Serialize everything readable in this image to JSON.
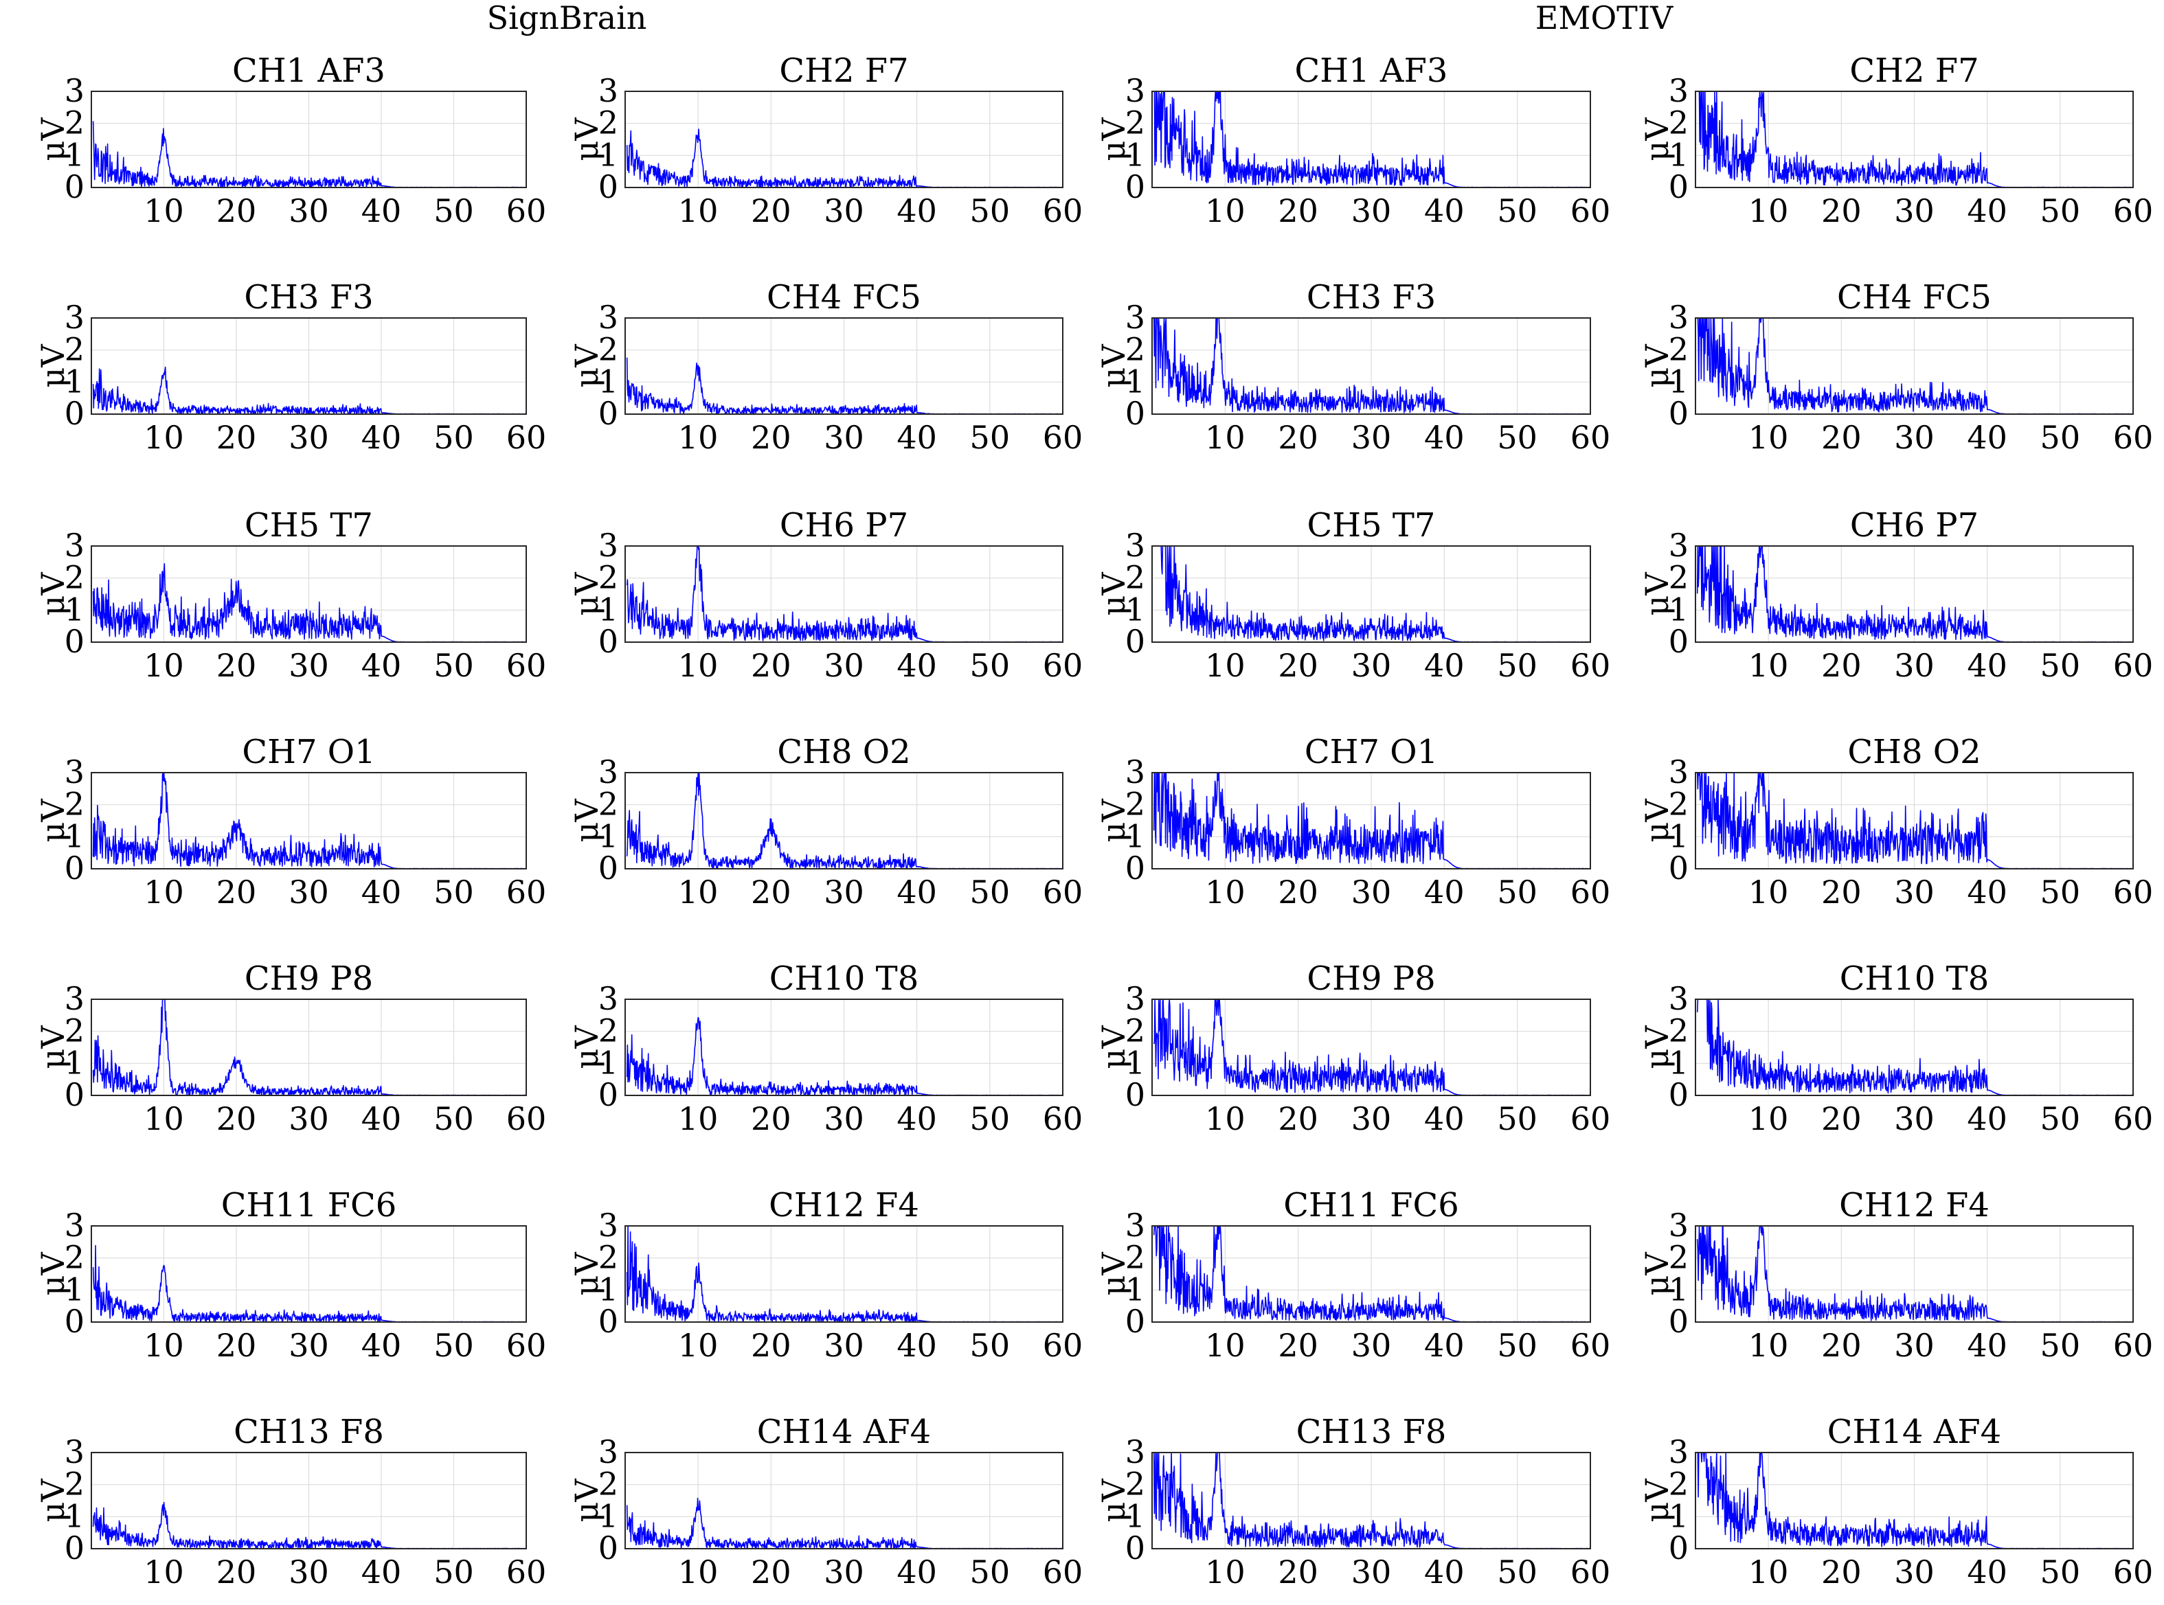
{
  "colors": {
    "trace": "#0000ff",
    "axis": "#262626",
    "grid": "#dcdcdc"
  },
  "groups": [
    {
      "title": "SignBrain"
    },
    {
      "title": "EMOTIV"
    }
  ],
  "chart_data": [
    {
      "group": "SignBrain",
      "title": "CH1 AF3",
      "type": "line",
      "xlim": [
        0,
        60
      ],
      "ylim": [
        0,
        3
      ],
      "xticks": [
        10,
        20,
        30,
        40,
        50,
        60
      ],
      "yticks": [
        0,
        1,
        2,
        3
      ],
      "ylabel": "μV",
      "grid": true,
      "cutoff": 40,
      "series": [
        {
          "peak_hz": 10,
          "peak_uv": 1.6,
          "floor_uv": 0.12,
          "start_uv": 0.9
        }
      ]
    },
    {
      "group": "SignBrain",
      "title": "CH2 F7",
      "type": "line",
      "xlim": [
        0,
        60
      ],
      "ylim": [
        0,
        3
      ],
      "xticks": [
        10,
        20,
        30,
        40,
        50,
        60
      ],
      "yticks": [
        0,
        1,
        2,
        3
      ],
      "ylabel": "μV",
      "grid": true,
      "cutoff": 40,
      "series": [
        {
          "peak_hz": 10,
          "peak_uv": 1.7,
          "floor_uv": 0.12,
          "start_uv": 0.9
        }
      ]
    },
    {
      "group": "EMOTIV",
      "title": "CH1 AF3",
      "type": "line",
      "xlim": [
        0,
        60
      ],
      "ylim": [
        0,
        3
      ],
      "xticks": [
        10,
        20,
        30,
        40,
        50,
        60
      ],
      "yticks": [
        0,
        1,
        2,
        3
      ],
      "ylabel": "μV",
      "grid": true,
      "cutoff": 40,
      "series": [
        {
          "peak_hz": 9,
          "peak_uv": 3.0,
          "floor_uv": 0.35,
          "start_uv": 2.6
        }
      ]
    },
    {
      "group": "EMOTIV",
      "title": "CH2 F7",
      "type": "line",
      "xlim": [
        0,
        60
      ],
      "ylim": [
        0,
        3
      ],
      "xticks": [
        10,
        20,
        30,
        40,
        50,
        60
      ],
      "yticks": [
        0,
        1,
        2,
        3
      ],
      "ylabel": "μV",
      "grid": true,
      "cutoff": 40,
      "series": [
        {
          "peak_hz": 9,
          "peak_uv": 3.0,
          "floor_uv": 0.35,
          "start_uv": 2.6
        }
      ]
    },
    {
      "group": "SignBrain",
      "title": "CH3 F3",
      "type": "line",
      "xlim": [
        0,
        60
      ],
      "ylim": [
        0,
        3
      ],
      "xticks": [
        10,
        20,
        30,
        40,
        50,
        60
      ],
      "yticks": [
        0,
        1,
        2,
        3
      ],
      "ylabel": "μV",
      "grid": true,
      "cutoff": 40,
      "series": [
        {
          "peak_hz": 10,
          "peak_uv": 1.3,
          "floor_uv": 0.1,
          "start_uv": 0.7
        }
      ]
    },
    {
      "group": "SignBrain",
      "title": "CH4 FC5",
      "type": "line",
      "xlim": [
        0,
        60
      ],
      "ylim": [
        0,
        3
      ],
      "xticks": [
        10,
        20,
        30,
        40,
        50,
        60
      ],
      "yticks": [
        0,
        1,
        2,
        3
      ],
      "ylabel": "μV",
      "grid": true,
      "cutoff": 40,
      "series": [
        {
          "peak_hz": 10,
          "peak_uv": 1.5,
          "floor_uv": 0.1,
          "start_uv": 0.7
        }
      ]
    },
    {
      "group": "EMOTIV",
      "title": "CH3 F3",
      "type": "line",
      "xlim": [
        0,
        60
      ],
      "ylim": [
        0,
        3
      ],
      "xticks": [
        10,
        20,
        30,
        40,
        50,
        60
      ],
      "yticks": [
        0,
        1,
        2,
        3
      ],
      "ylabel": "μV",
      "grid": true,
      "cutoff": 40,
      "series": [
        {
          "peak_hz": 9,
          "peak_uv": 3.0,
          "floor_uv": 0.3,
          "start_uv": 2.4
        }
      ]
    },
    {
      "group": "EMOTIV",
      "title": "CH4 FC5",
      "type": "line",
      "xlim": [
        0,
        60
      ],
      "ylim": [
        0,
        3
      ],
      "xticks": [
        10,
        20,
        30,
        40,
        50,
        60
      ],
      "yticks": [
        0,
        1,
        2,
        3
      ],
      "ylabel": "μV",
      "grid": true,
      "cutoff": 40,
      "series": [
        {
          "peak_hz": 9,
          "peak_uv": 3.0,
          "floor_uv": 0.35,
          "start_uv": 3.0
        }
      ]
    },
    {
      "group": "SignBrain",
      "title": "CH5 T7",
      "type": "line",
      "xlim": [
        0,
        60
      ],
      "ylim": [
        0,
        3
      ],
      "xticks": [
        10,
        20,
        30,
        40,
        50,
        60
      ],
      "yticks": [
        0,
        1,
        2,
        3
      ],
      "ylabel": "μV",
      "grid": true,
      "cutoff": 40,
      "series": [
        {
          "peak_hz": 10,
          "peak_uv": 2.1,
          "floor_uv": 0.45,
          "start_uv": 1.0,
          "beta_hz": 20,
          "beta_uv": 1.5
        }
      ]
    },
    {
      "group": "SignBrain",
      "title": "CH6 P7",
      "type": "line",
      "xlim": [
        0,
        60
      ],
      "ylim": [
        0,
        3
      ],
      "xticks": [
        10,
        20,
        30,
        40,
        50,
        60
      ],
      "yticks": [
        0,
        1,
        2,
        3
      ],
      "ylabel": "μV",
      "grid": true,
      "cutoff": 40,
      "series": [
        {
          "peak_hz": 10,
          "peak_uv": 3.0,
          "floor_uv": 0.3,
          "start_uv": 1.1
        }
      ]
    },
    {
      "group": "EMOTIV",
      "title": "CH5 T7",
      "type": "line",
      "xlim": [
        0,
        60
      ],
      "ylim": [
        0,
        3
      ],
      "xticks": [
        10,
        20,
        30,
        40,
        50,
        60
      ],
      "yticks": [
        0,
        1,
        2,
        3
      ],
      "ylabel": "μV",
      "grid": true,
      "cutoff": 40,
      "series": [
        {
          "peak_hz": 1,
          "peak_uv": 3.0,
          "floor_uv": 0.3,
          "start_uv": 2.6
        }
      ]
    },
    {
      "group": "EMOTIV",
      "title": "CH6 P7",
      "type": "line",
      "xlim": [
        0,
        60
      ],
      "ylim": [
        0,
        3
      ],
      "xticks": [
        10,
        20,
        30,
        40,
        50,
        60
      ],
      "yticks": [
        0,
        1,
        2,
        3
      ],
      "ylabel": "μV",
      "grid": true,
      "cutoff": 40,
      "series": [
        {
          "peak_hz": 9,
          "peak_uv": 3.0,
          "floor_uv": 0.4,
          "start_uv": 2.7
        }
      ]
    },
    {
      "group": "SignBrain",
      "title": "CH7 O1",
      "type": "line",
      "xlim": [
        0,
        60
      ],
      "ylim": [
        0,
        3
      ],
      "xticks": [
        10,
        20,
        30,
        40,
        50,
        60
      ],
      "yticks": [
        0,
        1,
        2,
        3
      ],
      "ylabel": "μV",
      "grid": true,
      "cutoff": 40,
      "series": [
        {
          "peak_hz": 10,
          "peak_uv": 3.0,
          "floor_uv": 0.35,
          "start_uv": 1.0,
          "beta_hz": 20,
          "beta_uv": 1.3
        }
      ]
    },
    {
      "group": "SignBrain",
      "title": "CH8 O2",
      "type": "line",
      "xlim": [
        0,
        60
      ],
      "ylim": [
        0,
        3
      ],
      "xticks": [
        10,
        20,
        30,
        40,
        50,
        60
      ],
      "yticks": [
        0,
        1,
        2,
        3
      ],
      "ylabel": "μV",
      "grid": true,
      "cutoff": 40,
      "series": [
        {
          "peak_hz": 10,
          "peak_uv": 3.0,
          "floor_uv": 0.15,
          "start_uv": 1.0,
          "beta_hz": 20,
          "beta_uv": 1.3
        }
      ]
    },
    {
      "group": "EMOTIV",
      "title": "CH7 O1",
      "type": "line",
      "xlim": [
        0,
        60
      ],
      "ylim": [
        0,
        3
      ],
      "xticks": [
        10,
        20,
        30,
        40,
        50,
        60
      ],
      "yticks": [
        0,
        1,
        2,
        3
      ],
      "ylabel": "μV",
      "grid": true,
      "cutoff": 40,
      "series": [
        {
          "peak_hz": 9,
          "peak_uv": 3.0,
          "floor_uv": 0.7,
          "start_uv": 2.6
        }
      ]
    },
    {
      "group": "EMOTIV",
      "title": "CH8 O2",
      "type": "line",
      "xlim": [
        0,
        60
      ],
      "ylim": [
        0,
        3
      ],
      "xticks": [
        10,
        20,
        30,
        40,
        50,
        60
      ],
      "yticks": [
        0,
        1,
        2,
        3
      ],
      "ylabel": "μV",
      "grid": true,
      "cutoff": 40,
      "series": [
        {
          "peak_hz": 9,
          "peak_uv": 3.0,
          "floor_uv": 0.7,
          "start_uv": 2.4
        }
      ]
    },
    {
      "group": "SignBrain",
      "title": "CH9 P8",
      "type": "line",
      "xlim": [
        0,
        60
      ],
      "ylim": [
        0,
        3
      ],
      "xticks": [
        10,
        20,
        30,
        40,
        50,
        60
      ],
      "yticks": [
        0,
        1,
        2,
        3
      ],
      "ylabel": "μV",
      "grid": true,
      "cutoff": 40,
      "series": [
        {
          "peak_hz": 10,
          "peak_uv": 3.0,
          "floor_uv": 0.1,
          "start_uv": 1.0,
          "beta_hz": 20,
          "beta_uv": 1.1
        }
      ]
    },
    {
      "group": "SignBrain",
      "title": "CH10 T8",
      "type": "line",
      "xlim": [
        0,
        60
      ],
      "ylim": [
        0,
        3
      ],
      "xticks": [
        10,
        20,
        30,
        40,
        50,
        60
      ],
      "yticks": [
        0,
        1,
        2,
        3
      ],
      "ylabel": "μV",
      "grid": true,
      "cutoff": 40,
      "series": [
        {
          "peak_hz": 10,
          "peak_uv": 2.3,
          "floor_uv": 0.15,
          "start_uv": 0.9
        }
      ]
    },
    {
      "group": "EMOTIV",
      "title": "CH9 P8",
      "type": "line",
      "xlim": [
        0,
        60
      ],
      "ylim": [
        0,
        3
      ],
      "xticks": [
        10,
        20,
        30,
        40,
        50,
        60
      ],
      "yticks": [
        0,
        1,
        2,
        3
      ],
      "ylabel": "μV",
      "grid": true,
      "cutoff": 40,
      "series": [
        {
          "peak_hz": 9,
          "peak_uv": 3.0,
          "floor_uv": 0.45,
          "start_uv": 2.4
        }
      ]
    },
    {
      "group": "EMOTIV",
      "title": "CH10 T8",
      "type": "line",
      "xlim": [
        0,
        60
      ],
      "ylim": [
        0,
        3
      ],
      "xticks": [
        10,
        20,
        30,
        40,
        50,
        60
      ],
      "yticks": [
        0,
        1,
        2,
        3
      ],
      "ylabel": "μV",
      "grid": true,
      "cutoff": 40,
      "series": [
        {
          "peak_hz": 1,
          "peak_uv": 3.0,
          "floor_uv": 0.4,
          "start_uv": 2.8
        }
      ]
    },
    {
      "group": "SignBrain",
      "title": "CH11 FC6",
      "type": "line",
      "xlim": [
        0,
        60
      ],
      "ylim": [
        0,
        3
      ],
      "xticks": [
        10,
        20,
        30,
        40,
        50,
        60
      ],
      "yticks": [
        0,
        1,
        2,
        3
      ],
      "ylabel": "μV",
      "grid": true,
      "cutoff": 40,
      "series": [
        {
          "peak_hz": 10,
          "peak_uv": 1.7,
          "floor_uv": 0.12,
          "start_uv": 1.0
        }
      ]
    },
    {
      "group": "SignBrain",
      "title": "CH12 F4",
      "type": "line",
      "xlim": [
        0,
        60
      ],
      "ylim": [
        0,
        3
      ],
      "xticks": [
        10,
        20,
        30,
        40,
        50,
        60
      ],
      "yticks": [
        0,
        1,
        2,
        3
      ],
      "ylabel": "μV",
      "grid": true,
      "cutoff": 40,
      "series": [
        {
          "peak_hz": 10,
          "peak_uv": 1.6,
          "floor_uv": 0.12,
          "start_uv": 1.5
        }
      ]
    },
    {
      "group": "EMOTIV",
      "title": "CH11 FC6",
      "type": "line",
      "xlim": [
        0,
        60
      ],
      "ylim": [
        0,
        3
      ],
      "xticks": [
        10,
        20,
        30,
        40,
        50,
        60
      ],
      "yticks": [
        0,
        1,
        2,
        3
      ],
      "ylabel": "μV",
      "grid": true,
      "cutoff": 40,
      "series": [
        {
          "peak_hz": 9,
          "peak_uv": 3.0,
          "floor_uv": 0.3,
          "start_uv": 3.0
        }
      ]
    },
    {
      "group": "EMOTIV",
      "title": "CH12 F4",
      "type": "line",
      "xlim": [
        0,
        60
      ],
      "ylim": [
        0,
        3
      ],
      "xticks": [
        10,
        20,
        30,
        40,
        50,
        60
      ],
      "yticks": [
        0,
        1,
        2,
        3
      ],
      "ylabel": "μV",
      "grid": true,
      "cutoff": 40,
      "series": [
        {
          "peak_hz": 9,
          "peak_uv": 3.0,
          "floor_uv": 0.3,
          "start_uv": 2.8
        }
      ]
    },
    {
      "group": "SignBrain",
      "title": "CH13 F8",
      "type": "line",
      "xlim": [
        0,
        60
      ],
      "ylim": [
        0,
        3
      ],
      "xticks": [
        10,
        20,
        30,
        40,
        50,
        60
      ],
      "yticks": [
        0,
        1,
        2,
        3
      ],
      "ylabel": "μV",
      "grid": true,
      "cutoff": 40,
      "series": [
        {
          "peak_hz": 10,
          "peak_uv": 1.3,
          "floor_uv": 0.12,
          "start_uv": 0.7
        }
      ]
    },
    {
      "group": "SignBrain",
      "title": "CH14 AF4",
      "type": "line",
      "xlim": [
        0,
        60
      ],
      "ylim": [
        0,
        3
      ],
      "xticks": [
        10,
        20,
        30,
        40,
        50,
        60
      ],
      "yticks": [
        0,
        1,
        2,
        3
      ],
      "ylabel": "μV",
      "grid": true,
      "cutoff": 40,
      "series": [
        {
          "peak_hz": 10,
          "peak_uv": 1.5,
          "floor_uv": 0.12,
          "start_uv": 0.7
        }
      ]
    },
    {
      "group": "EMOTIV",
      "title": "CH13 F8",
      "type": "line",
      "xlim": [
        0,
        60
      ],
      "ylim": [
        0,
        3
      ],
      "xticks": [
        10,
        20,
        30,
        40,
        50,
        60
      ],
      "yticks": [
        0,
        1,
        2,
        3
      ],
      "ylabel": "μV",
      "grid": true,
      "cutoff": 40,
      "series": [
        {
          "peak_hz": 9,
          "peak_uv": 3.0,
          "floor_uv": 0.3,
          "start_uv": 2.6
        }
      ]
    },
    {
      "group": "EMOTIV",
      "title": "CH14 AF4",
      "type": "line",
      "xlim": [
        0,
        60
      ],
      "ylim": [
        0,
        3
      ],
      "xticks": [
        10,
        20,
        30,
        40,
        50,
        60
      ],
      "yticks": [
        0,
        1,
        2,
        3
      ],
      "ylabel": "μV",
      "grid": true,
      "cutoff": 40,
      "series": [
        {
          "peak_hz": 9,
          "peak_uv": 3.0,
          "floor_uv": 0.35,
          "start_uv": 2.7
        }
      ]
    }
  ]
}
